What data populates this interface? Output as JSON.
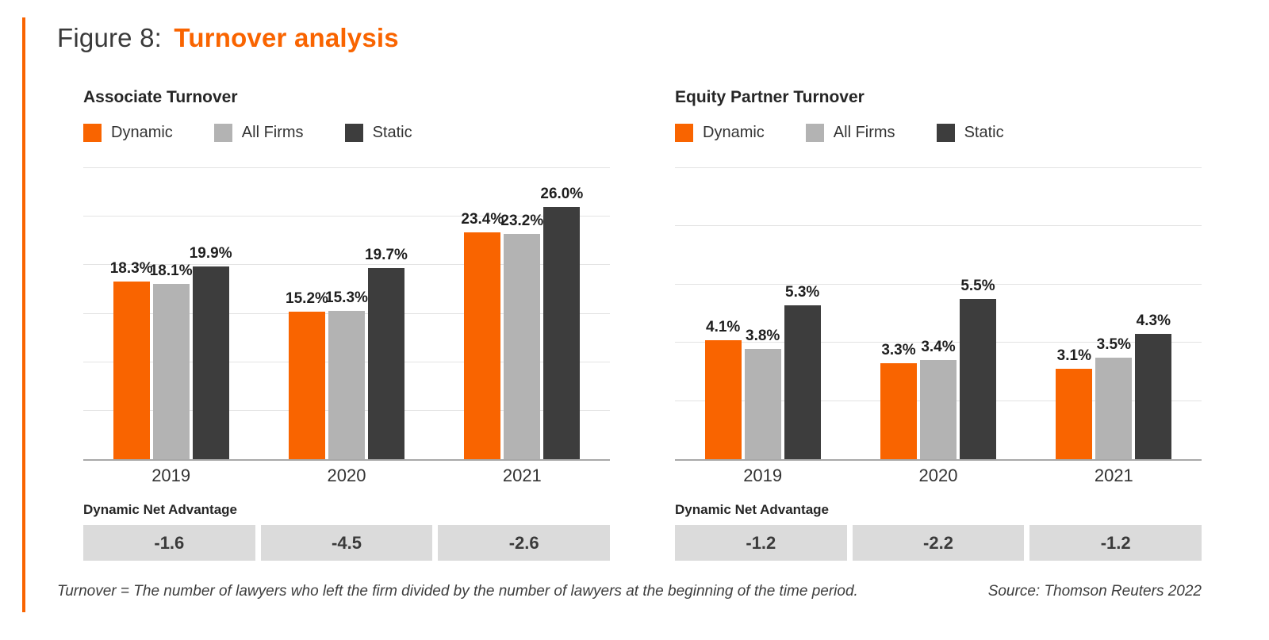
{
  "page": {
    "figure_label": "Figure 8:",
    "figure_name": "Turnover analysis",
    "footnote": "Turnover = The number of lawyers who left the firm divided by the number of lawyers at the beginning of the time period.",
    "source": "Source: Thomson Reuters 2022"
  },
  "colors": {
    "accent_orange": "#F96400",
    "dynamic_bar": "#F96400",
    "all_firms_bar": "#B3B3B3",
    "static_bar": "#3D3D3D",
    "net_box_bg": "#DBDBDB",
    "gridline": "#E3E3E3",
    "axis_line": "#A8A8A8"
  },
  "chart_data": [
    {
      "type": "bar",
      "id": "associate-turnover",
      "title": "Associate Turnover",
      "categories": [
        "2019",
        "2020",
        "2021"
      ],
      "series": [
        {
          "name": "Dynamic",
          "color": "#F96400",
          "values": [
            18.3,
            15.2,
            23.4
          ]
        },
        {
          "name": "All Firms",
          "color": "#B3B3B3",
          "values": [
            18.1,
            15.3,
            23.2
          ]
        },
        {
          "name": "Static",
          "color": "#3D3D3D",
          "values": [
            19.9,
            19.7,
            26.0
          ]
        }
      ],
      "value_suffix": "%",
      "value_decimals": 1,
      "ylim": [
        0,
        30
      ],
      "gridline_step": 5,
      "legend_position": "top",
      "grid": true,
      "net_advantage": {
        "label": "Dynamic Net Advantage",
        "values": [
          "-1.6",
          "-4.5",
          "-2.6"
        ]
      }
    },
    {
      "type": "bar",
      "id": "equity-partner-turnover",
      "title": "Equity Partner Turnover",
      "categories": [
        "2019",
        "2020",
        "2021"
      ],
      "series": [
        {
          "name": "Dynamic",
          "color": "#F96400",
          "values": [
            4.1,
            3.3,
            3.1
          ]
        },
        {
          "name": "All Firms",
          "color": "#B3B3B3",
          "values": [
            3.8,
            3.4,
            3.5
          ]
        },
        {
          "name": "Static",
          "color": "#3D3D3D",
          "values": [
            5.3,
            5.5,
            4.3
          ]
        }
      ],
      "value_suffix": "%",
      "value_decimals": 1,
      "ylim": [
        0,
        10
      ],
      "gridline_step": 2,
      "legend_position": "top",
      "grid": true,
      "net_advantage": {
        "label": "Dynamic Net Advantage",
        "values": [
          "-1.2",
          "-2.2",
          "-1.2"
        ]
      }
    }
  ]
}
